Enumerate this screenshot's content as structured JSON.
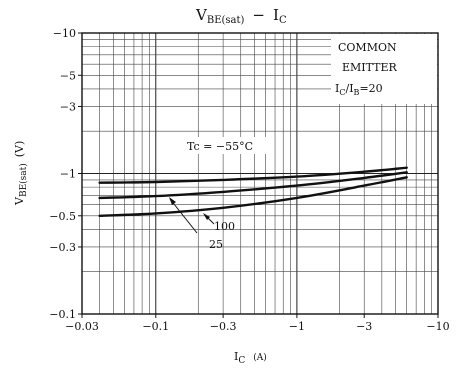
{
  "chart_data": {
    "type": "line",
    "title": "V",
    "title_sub": "BE(sat)",
    "title_dash": "−",
    "title_ic": "I",
    "title_ic_sub": "C",
    "xlabel": "I",
    "xlabel_sub": "C",
    "xlabel_unit": "(A)",
    "ylabel": "V",
    "ylabel_sub": "BE(sat)",
    "ylabel_unit": "(V)",
    "x_scale": "log",
    "y_scale": "log",
    "xlim": [
      -0.03,
      -10
    ],
    "ylim": [
      -0.1,
      -10
    ],
    "x_ticks": [
      {
        "value": -0.03,
        "label": "−0.03"
      },
      {
        "value": -0.1,
        "label": "−0.1"
      },
      {
        "value": -0.3,
        "label": "−0.3"
      },
      {
        "value": -1,
        "label": "−1"
      },
      {
        "value": -3,
        "label": "−3"
      },
      {
        "value": -10,
        "label": "−10"
      }
    ],
    "y_ticks": [
      {
        "value": -0.1,
        "label": "−0.1"
      },
      {
        "value": -0.3,
        "label": "−0.3"
      },
      {
        "value": -0.5,
        "label": "−0.5"
      },
      {
        "value": -1,
        "label": "−1"
      },
      {
        "value": -3,
        "label": "−3"
      },
      {
        "value": -5,
        "label": "−5"
      },
      {
        "value": -10,
        "label": "−10"
      }
    ],
    "grid": true,
    "annotation_box": {
      "line1": "COMMON",
      "line2": "EMITTER",
      "line3_main": "I",
      "line3_sub": "C",
      "line3_mid": "/I",
      "line3_sub2": "B",
      "line3_end": "=20"
    },
    "series": [
      {
        "name": "Tc = −55°C",
        "label": "Tc = −55°C",
        "x": [
          -0.04,
          -0.1,
          -0.3,
          -1,
          -3,
          -6
        ],
        "y": [
          -0.86,
          -0.87,
          -0.9,
          -0.95,
          -1.03,
          -1.1
        ]
      },
      {
        "name": "25",
        "label": "25",
        "x": [
          -0.04,
          -0.1,
          -0.3,
          -1,
          -3,
          -6
        ],
        "y": [
          -0.67,
          -0.69,
          -0.74,
          -0.82,
          -0.93,
          -1.02
        ]
      },
      {
        "name": "100",
        "label": "100",
        "x": [
          -0.04,
          -0.1,
          -0.3,
          -1,
          -3,
          -6
        ],
        "y": [
          -0.5,
          -0.52,
          -0.57,
          -0.67,
          -0.82,
          -0.94
        ]
      }
    ]
  }
}
